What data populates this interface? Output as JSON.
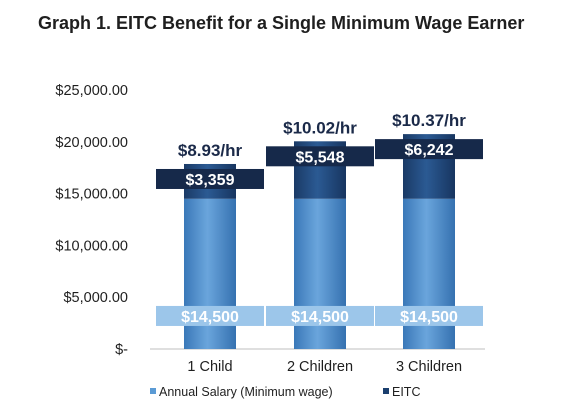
{
  "chart_data": {
    "type": "bar",
    "stacked": true,
    "title": "Graph 1. EITC Benefit for a Single Minimum Wage Earner",
    "categories": [
      "1 Child",
      "2 Children",
      "3 Children"
    ],
    "y_ticks": [
      "$-",
      "$5,000.00",
      "$10,000.00",
      "$15,000.00",
      "$20,000.00",
      "$25,000.00"
    ],
    "ylim": [
      0,
      25000
    ],
    "grid": false,
    "legend_position": "bottom",
    "series": [
      {
        "name": "Annual Salary (Minimum wage)",
        "values": [
          14500,
          14500,
          14500
        ],
        "labels": [
          "$14,500",
          "$14,500",
          "$14,500"
        ],
        "color": "#5b9bd5"
      },
      {
        "name": "EITC",
        "values": [
          3359,
          5548,
          6242
        ],
        "labels": [
          "$3,359",
          "$5,548",
          "$6,242"
        ],
        "color": "#1b3f6e"
      }
    ],
    "annotations": [
      "$8.93/hr",
      "$10.02/hr",
      "$10.37/hr"
    ]
  }
}
